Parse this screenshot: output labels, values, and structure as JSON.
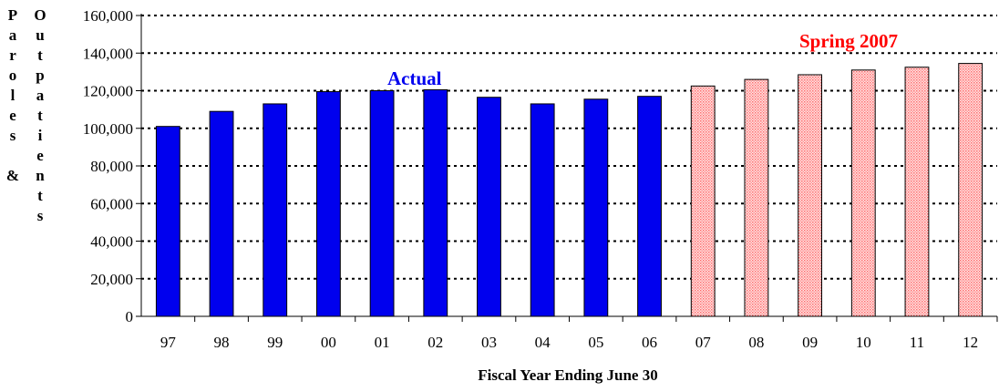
{
  "chart_data": {
    "type": "bar",
    "categories": [
      "97",
      "98",
      "99",
      "00",
      "01",
      "02",
      "03",
      "04",
      "05",
      "06",
      "07",
      "08",
      "09",
      "10",
      "11",
      "12"
    ],
    "series": [
      {
        "name": "Actual",
        "values": [
          101000,
          109000,
          113000,
          119500,
          120000,
          120500,
          116500,
          113000,
          115500,
          117000,
          null,
          null,
          null,
          null,
          null,
          null
        ],
        "color": "#0000ee"
      },
      {
        "name": "Spring 2007",
        "values": [
          null,
          null,
          null,
          null,
          null,
          null,
          null,
          null,
          null,
          null,
          122500,
          126000,
          128500,
          131000,
          132500,
          134500
        ],
        "color": "#ff6f6f"
      }
    ],
    "yticks": [
      "0",
      "20,000",
      "40,000",
      "60,000",
      "80,000",
      "100,000",
      "120,000",
      "140,000",
      "160,000"
    ],
    "ylim": [
      0,
      160000
    ],
    "xlabel": "Fiscal Year Ending June 30",
    "ylabel_left": "Paroles &",
    "ylabel_right": "Outpatients",
    "annotations": {
      "actual": "Actual",
      "projection": "Spring 2007"
    },
    "grid": true
  }
}
